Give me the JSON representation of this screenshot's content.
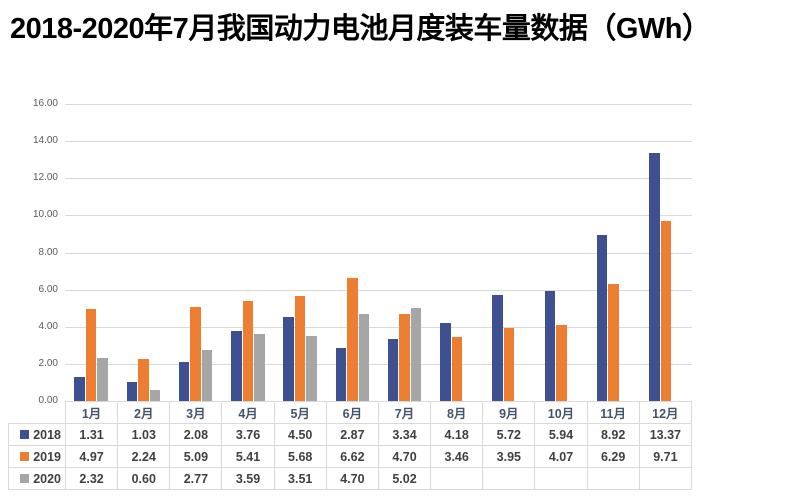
{
  "title": "2018-2020年7月我国动力电池月度装车量数据（GWh）",
  "colors": {
    "series_2018": "#3F5090",
    "series_2019": "#ED7D31",
    "series_2020": "#A6A6A6",
    "gridline": "#D9D9D9",
    "table_border": "#D9D9D9",
    "axis_tick_label": "#595959",
    "month_header_text": "#44546A",
    "value_text": "#404040",
    "title_text": "#000000",
    "background": "#FFFFFF"
  },
  "chart_data": {
    "type": "bar",
    "title": "2018-2020年7月我国动力电池月度装车量数据（GWh）",
    "xlabel": "",
    "ylabel": "",
    "categories": [
      "1月",
      "2月",
      "3月",
      "4月",
      "5月",
      "6月",
      "7月",
      "8月",
      "9月",
      "10月",
      "11月",
      "12月"
    ],
    "series": [
      {
        "name": "2018",
        "color": "#3F5090",
        "values": [
          1.31,
          1.03,
          2.08,
          3.76,
          4.5,
          2.87,
          3.34,
          4.18,
          5.72,
          5.94,
          8.92,
          13.37
        ]
      },
      {
        "name": "2019",
        "color": "#ED7D31",
        "values": [
          4.97,
          2.24,
          5.09,
          5.41,
          5.68,
          6.62,
          4.7,
          3.46,
          3.95,
          4.07,
          6.29,
          9.71
        ]
      },
      {
        "name": "2020",
        "color": "#A6A6A6",
        "values": [
          2.32,
          0.6,
          2.77,
          3.59,
          3.51,
          4.7,
          5.02,
          null,
          null,
          null,
          null,
          null
        ]
      }
    ],
    "ylim": [
      0,
      16
    ],
    "ytick_labels": [
      "16.00",
      "14.00",
      "12.00",
      "10.00",
      "8.00",
      "6.00",
      "4.00",
      "2.00",
      "0.00"
    ],
    "grid": true,
    "legend_position": "data-table-left",
    "value_decimals": 2
  }
}
